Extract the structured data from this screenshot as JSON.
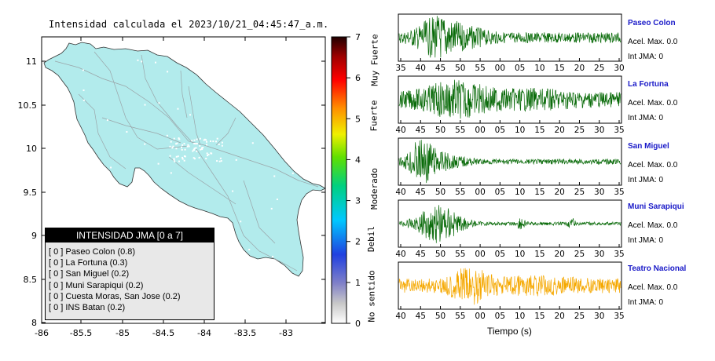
{
  "title": "Intensidad calculada el 2023/10/21_04:45:47_a.m.",
  "map": {
    "y_ticks": [
      "11",
      "10.5",
      "10",
      "9.5",
      "9",
      "8.5",
      "8"
    ],
    "x_ticks": [
      "-86",
      "-85.5",
      "-85",
      "-84.5",
      "-84",
      "-83.5",
      "-83"
    ],
    "fill_color": "#b2ebec"
  },
  "legend": {
    "header": "INTENSIDAD JMA [0 a 7]",
    "items": [
      "[ 0 ]  Paseo Colon (0.8)",
      "[ 0 ]  La Fortuna (0.3)",
      "[ 0 ]  San Miguel (0.2)",
      "[ 0 ]  Muni Sarapiqui (0.2)",
      "[ 0 ]  Cuesta Moras, San Jose (0.2)",
      "[ 0 ]  INS Batan (0.2)"
    ]
  },
  "colorbar": {
    "ticks": [
      "7",
      "6",
      "5",
      "4",
      "3",
      "2",
      "1",
      "0"
    ],
    "levels": [
      "Muy Fuerte",
      "Fuerte",
      "Moderado",
      "Debil",
      "No sentido"
    ]
  },
  "stations": [
    {
      "name": "Paseo Colon",
      "acel": "Acel. Max. 0.0",
      "int": "Int JMA: 0",
      "ticks": [
        "35",
        "40",
        "45",
        "50",
        "55",
        "00",
        "05",
        "10",
        "15",
        "20",
        "25",
        "30"
      ],
      "color": "#0a6b0a",
      "amp": 1.0
    },
    {
      "name": "La Fortuna",
      "acel": "Acel. Max. 0.0",
      "int": "Int JMA: 0",
      "ticks": [
        "40",
        "45",
        "50",
        "55",
        "00",
        "05",
        "10",
        "15",
        "20",
        "25",
        "30",
        "35"
      ],
      "color": "#0a6b0a",
      "amp": 1.0
    },
    {
      "name": "San Miguel",
      "acel": "Acel. Max. 0.0",
      "int": "Int JMA: 0",
      "ticks": [
        "40",
        "45",
        "50",
        "55",
        "00",
        "05",
        "10",
        "15",
        "20",
        "25",
        "30",
        "35"
      ],
      "color": "#0a6b0a",
      "amp": 1.0
    },
    {
      "name": "Muni Sarapiqui",
      "acel": "Acel. Max. 0.0",
      "int": "Int JMA: 0",
      "ticks": [
        "40",
        "45",
        "50",
        "55",
        "00",
        "05",
        "10",
        "15",
        "20",
        "25",
        "30",
        "35"
      ],
      "color": "#0a6b0a",
      "amp": 1.0
    },
    {
      "name": "Teatro Nacional",
      "acel": "Acel. Max. 0.0",
      "int": "Int JMA: 0",
      "ticks": [
        "40",
        "45",
        "50",
        "55",
        "00",
        "05",
        "10",
        "15",
        "20",
        "25",
        "30",
        "35"
      ],
      "color": "#f5a800",
      "amp": 1.0
    }
  ],
  "xlabel": "Tiempo (s)"
}
